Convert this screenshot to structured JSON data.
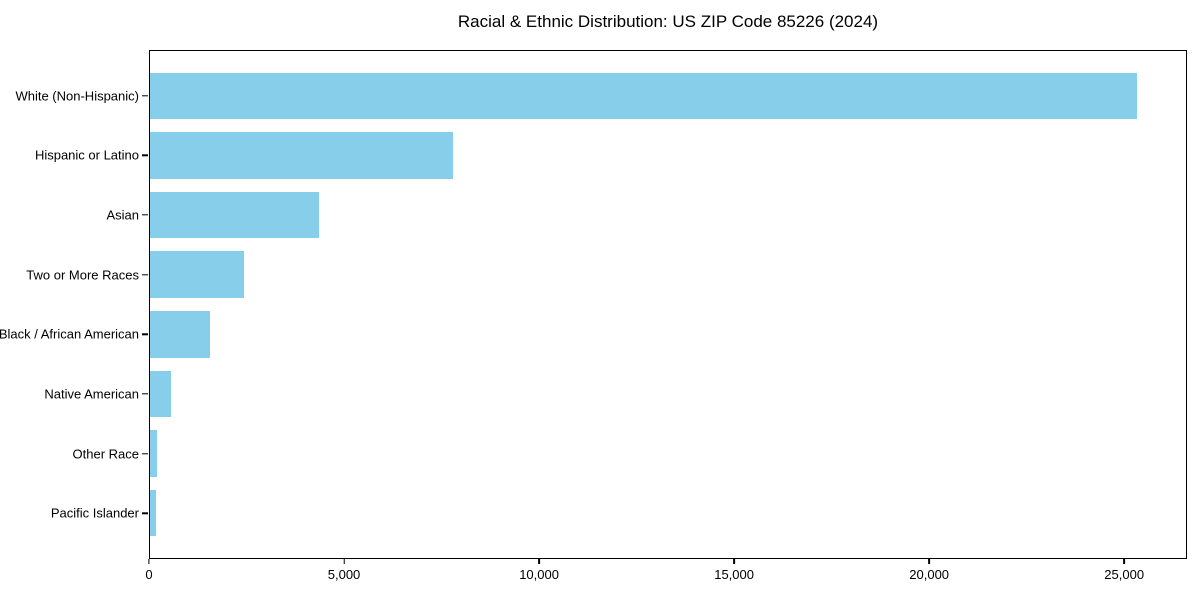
{
  "chart_data": {
    "type": "bar",
    "orientation": "horizontal",
    "title": "Racial & Ethnic Distribution: US ZIP Code 85226 (2024)",
    "categories": [
      "White (Non-Hispanic)",
      "Hispanic or Latino",
      "Asian",
      "Two or More Races",
      "Black / African American",
      "Native American",
      "Other Race",
      "Pacific Islander"
    ],
    "values": [
      25340,
      7780,
      4330,
      2410,
      1530,
      530,
      180,
      155
    ],
    "xlabel": "",
    "ylabel": "",
    "xlim": [
      0,
      26610
    ],
    "xticks": [
      {
        "value": 0,
        "label": "0"
      },
      {
        "value": 5000,
        "label": "5,000"
      },
      {
        "value": 10000,
        "label": "10,000"
      },
      {
        "value": 15000,
        "label": "15,000"
      },
      {
        "value": 20000,
        "label": "20,000"
      },
      {
        "value": 25000,
        "label": "25,000"
      }
    ],
    "bar_color": "#87CEEB",
    "spine_color": "#000000",
    "background_color": "#ffffff",
    "grid": false,
    "legend": null
  }
}
